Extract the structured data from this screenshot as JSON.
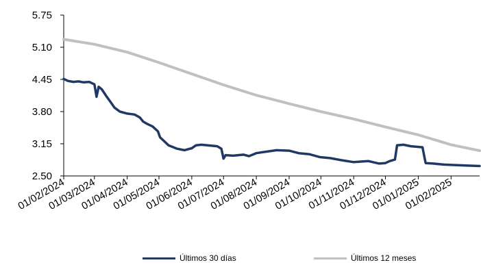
{
  "chart_data": {
    "type": "line",
    "title": "",
    "xlabel": "",
    "ylabel": "",
    "ylim": [
      2.5,
      5.75
    ],
    "y_ticks": [
      "5.75",
      "5.10",
      "4.45",
      "3.80",
      "3.15",
      "2.50"
    ],
    "x_range": [
      "2024-02-01",
      "2025-02-28"
    ],
    "x_ticks": [
      {
        "date": "2024-02-01",
        "label": "01/02/2024"
      },
      {
        "date": "2024-03-01",
        "label": "01/03/2024"
      },
      {
        "date": "2024-04-01",
        "label": "01/04/2024"
      },
      {
        "date": "2024-05-01",
        "label": "01/05/2024"
      },
      {
        "date": "2024-06-01",
        "label": "01/06/2024"
      },
      {
        "date": "2024-07-01",
        "label": "01/07/2024"
      },
      {
        "date": "2024-08-01",
        "label": "01/08/2024"
      },
      {
        "date": "2024-09-01",
        "label": "01/09/2024"
      },
      {
        "date": "2024-10-01",
        "label": "01/10/2024"
      },
      {
        "date": "2024-11-01",
        "label": "01/11/2024"
      },
      {
        "date": "2024-12-01",
        "label": "01/12/2024"
      },
      {
        "date": "2025-01-01",
        "label": "01/01/2025"
      },
      {
        "date": "2025-02-01",
        "label": "01/02/2025"
      }
    ],
    "grid": false,
    "legend_position": "bottom",
    "series": [
      {
        "name": "Últimos 30 días",
        "color": "#1f3864",
        "points": [
          [
            "2024-02-01",
            4.46
          ],
          [
            "2024-02-05",
            4.42
          ],
          [
            "2024-02-10",
            4.4
          ],
          [
            "2024-02-15",
            4.41
          ],
          [
            "2024-02-20",
            4.39
          ],
          [
            "2024-02-25",
            4.4
          ],
          [
            "2024-03-01",
            4.35
          ],
          [
            "2024-03-03",
            4.1
          ],
          [
            "2024-03-05",
            4.3
          ],
          [
            "2024-03-08",
            4.25
          ],
          [
            "2024-03-12",
            4.12
          ],
          [
            "2024-03-16",
            4.0
          ],
          [
            "2024-03-20",
            3.88
          ],
          [
            "2024-03-25",
            3.8
          ],
          [
            "2024-04-01",
            3.76
          ],
          [
            "2024-04-08",
            3.74
          ],
          [
            "2024-04-13",
            3.68
          ],
          [
            "2024-04-16",
            3.6
          ],
          [
            "2024-04-20",
            3.55
          ],
          [
            "2024-04-25",
            3.5
          ],
          [
            "2024-04-30",
            3.4
          ],
          [
            "2024-05-02",
            3.28
          ],
          [
            "2024-05-05",
            3.22
          ],
          [
            "2024-05-10",
            3.12
          ],
          [
            "2024-05-18",
            3.05
          ],
          [
            "2024-05-25",
            3.02
          ],
          [
            "2024-06-01",
            3.06
          ],
          [
            "2024-06-05",
            3.12
          ],
          [
            "2024-06-10",
            3.13
          ],
          [
            "2024-06-20",
            3.11
          ],
          [
            "2024-06-25",
            3.1
          ],
          [
            "2024-06-29",
            3.05
          ],
          [
            "2024-07-01",
            2.85
          ],
          [
            "2024-07-03",
            2.92
          ],
          [
            "2024-07-10",
            2.91
          ],
          [
            "2024-07-20",
            2.93
          ],
          [
            "2024-07-25",
            2.9
          ],
          [
            "2024-08-01",
            2.96
          ],
          [
            "2024-08-10",
            2.99
          ],
          [
            "2024-08-20",
            3.02
          ],
          [
            "2024-09-01",
            3.01
          ],
          [
            "2024-09-10",
            2.96
          ],
          [
            "2024-09-20",
            2.94
          ],
          [
            "2024-09-30",
            2.88
          ],
          [
            "2024-10-10",
            2.86
          ],
          [
            "2024-10-20",
            2.82
          ],
          [
            "2024-11-01",
            2.78
          ],
          [
            "2024-11-15",
            2.8
          ],
          [
            "2024-11-25",
            2.75
          ],
          [
            "2024-12-01",
            2.76
          ],
          [
            "2024-12-05",
            2.8
          ],
          [
            "2024-12-10",
            2.83
          ],
          [
            "2024-12-12",
            3.12
          ],
          [
            "2024-12-18",
            3.13
          ],
          [
            "2024-12-25",
            3.1
          ],
          [
            "2025-01-05",
            3.08
          ],
          [
            "2025-01-08",
            2.76
          ],
          [
            "2025-01-15",
            2.75
          ],
          [
            "2025-01-25",
            2.73
          ],
          [
            "2025-02-05",
            2.72
          ],
          [
            "2025-02-15",
            2.71
          ],
          [
            "2025-02-28",
            2.7
          ]
        ]
      },
      {
        "name": "Últimos 12 meses",
        "color": "#c0c0c0",
        "points": [
          [
            "2024-02-01",
            5.26
          ],
          [
            "2024-03-01",
            5.16
          ],
          [
            "2024-04-01",
            5.0
          ],
          [
            "2024-05-01",
            4.79
          ],
          [
            "2024-06-01",
            4.56
          ],
          [
            "2024-07-01",
            4.34
          ],
          [
            "2024-08-01",
            4.13
          ],
          [
            "2024-09-01",
            3.96
          ],
          [
            "2024-10-01",
            3.8
          ],
          [
            "2024-11-01",
            3.65
          ],
          [
            "2024-12-01",
            3.49
          ],
          [
            "2025-01-01",
            3.33
          ],
          [
            "2025-02-01",
            3.13
          ],
          [
            "2025-02-28",
            3.01
          ]
        ]
      }
    ]
  },
  "legend": {
    "series_30": "Últimos 30 días",
    "series_12": "Últimos 12 meses"
  }
}
